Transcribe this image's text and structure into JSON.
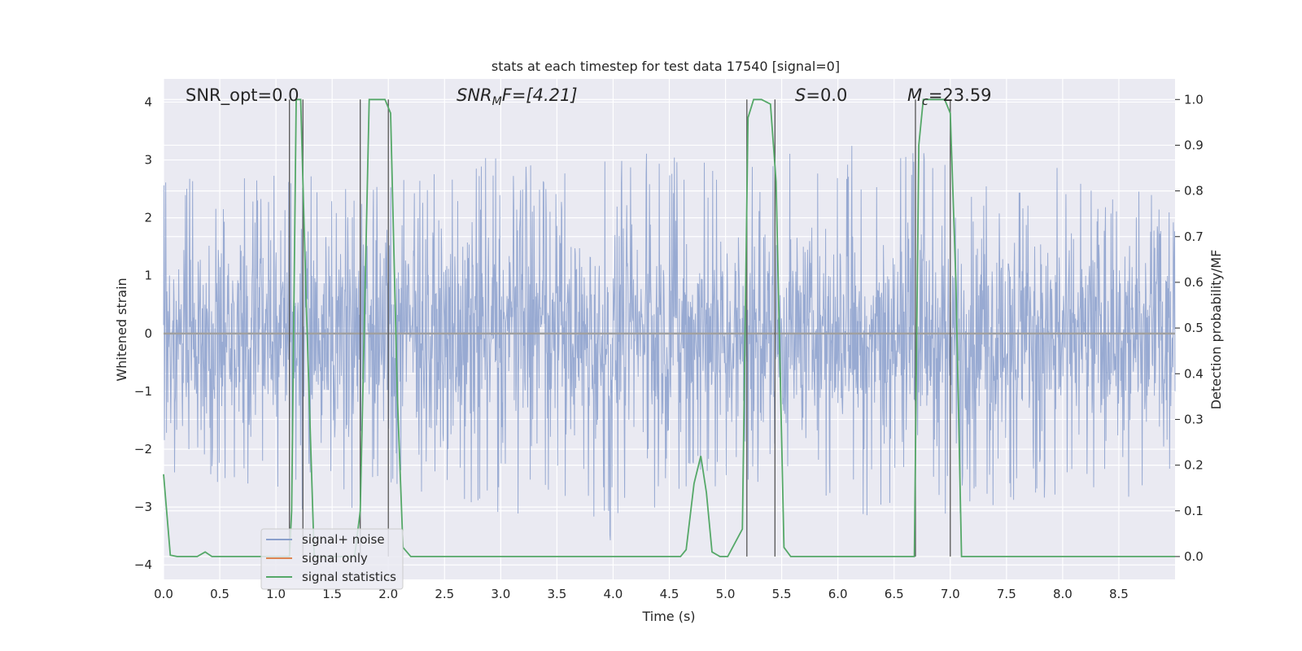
{
  "chart_data": {
    "type": "line",
    "title": "stats at each timestep for test data 17540 [signal=0]",
    "xlabel": "Time (s)",
    "ylabel_left": "Whitened strain",
    "ylabel_right": "Detection probability/MF",
    "xlim": [
      0,
      9.0
    ],
    "ylim_left": [
      -4.25,
      4.4
    ],
    "ylim_right": [
      -0.05,
      1.045
    ],
    "x_ticks": [
      "0.0",
      "0.5",
      "1.0",
      "1.5",
      "2.0",
      "2.5",
      "3.0",
      "3.5",
      "4.0",
      "4.5",
      "5.0",
      "5.5",
      "6.0",
      "6.5",
      "7.0",
      "7.5",
      "8.0",
      "8.5"
    ],
    "y_ticks_left": [
      "4",
      "3",
      "2",
      "1",
      "0",
      "−1",
      "−2",
      "−3",
      "−4"
    ],
    "y_ticks_right": [
      "1.0",
      "0.9",
      "0.8",
      "0.7",
      "0.6",
      "0.5",
      "0.4",
      "0.3",
      "0.2",
      "0.1",
      "0.0"
    ],
    "grid": true,
    "legend_position": "lower-left",
    "annotations": {
      "snr_opt": "SNR_opt=0.0",
      "snr_mf_base": "SNR",
      "snr_mf_sub": "M",
      "snr_mf_rest": "F=[4.21]",
      "s_base": "S",
      "s_rest": "=0.0",
      "mc_base": "M",
      "mc_sub": "c",
      "mc_rest": "=23.59"
    },
    "series": [
      {
        "name": "signal+ noise",
        "color": "#8a9fcc",
        "envelope_x": [
          0.0,
          0.5,
          1.0,
          1.5,
          2.0,
          2.5,
          3.0,
          3.5,
          4.0,
          4.5,
          5.0,
          5.5,
          6.0,
          6.5,
          7.0,
          7.5,
          8.0,
          8.5,
          9.0
        ],
        "envelope_upper": [
          2.9,
          2.6,
          2.8,
          2.7,
          2.6,
          2.8,
          3.2,
          2.7,
          3.2,
          3.4,
          2.7,
          3.2,
          3.3,
          3.2,
          3.2,
          2.9,
          2.9,
          2.6,
          2.4
        ],
        "envelope_lower": [
          -2.4,
          -2.8,
          -3.0,
          -3.1,
          -3.0,
          -2.7,
          -3.2,
          -3.1,
          -3.6,
          -3.3,
          -2.6,
          -3.0,
          -3.2,
          -3.1,
          -3.4,
          -3.0,
          -3.0,
          -3.0,
          -2.8
        ]
      },
      {
        "name": "signal only",
        "color": "#dd8452",
        "x": [
          0.0,
          9.0
        ],
        "y": [
          0.0,
          0.0
        ]
      },
      {
        "name": "signal statistics",
        "color": "#55a868",
        "axis": "right",
        "x": [
          0.0,
          0.06,
          0.12,
          0.3,
          0.37,
          0.43,
          0.6,
          1.0,
          1.08,
          1.12,
          1.14,
          1.18,
          1.22,
          1.27,
          1.34,
          1.38,
          1.45,
          1.6,
          1.7,
          1.75,
          1.83,
          1.9,
          1.97,
          2.02,
          2.08,
          2.13,
          2.2,
          3.0,
          4.0,
          4.6,
          4.65,
          4.72,
          4.78,
          4.83,
          4.88,
          4.95,
          5.02,
          5.15,
          5.2,
          5.25,
          5.32,
          5.4,
          5.45,
          5.52,
          5.58,
          5.65,
          6.0,
          6.68,
          6.72,
          6.76,
          6.85,
          6.95,
          7.0,
          7.05,
          7.1,
          7.14,
          7.3,
          8.0,
          9.0
        ],
        "y": [
          0.18,
          0.003,
          0.0,
          0.0,
          0.01,
          0.0,
          0.0,
          0.0,
          0.0,
          0.0,
          0.1,
          1.0,
          1.0,
          0.55,
          0.0,
          0.0,
          0.0,
          0.0,
          0.0,
          0.1,
          1.0,
          1.0,
          1.0,
          0.97,
          0.35,
          0.02,
          0.0,
          0.0,
          0.0,
          0.0,
          0.015,
          0.16,
          0.22,
          0.14,
          0.01,
          0.0,
          0.0,
          0.06,
          0.96,
          1.0,
          1.0,
          0.99,
          0.82,
          0.02,
          0.0,
          0.0,
          0.0,
          0.0,
          0.9,
          1.0,
          1.0,
          1.0,
          0.97,
          0.6,
          0.0,
          0.0,
          0.0,
          0.0,
          0.0
        ]
      }
    ],
    "vertical_lines_x": [
      1.12,
      1.24,
      1.75,
      2.0,
      5.19,
      5.44,
      6.69,
      7.0
    ]
  }
}
